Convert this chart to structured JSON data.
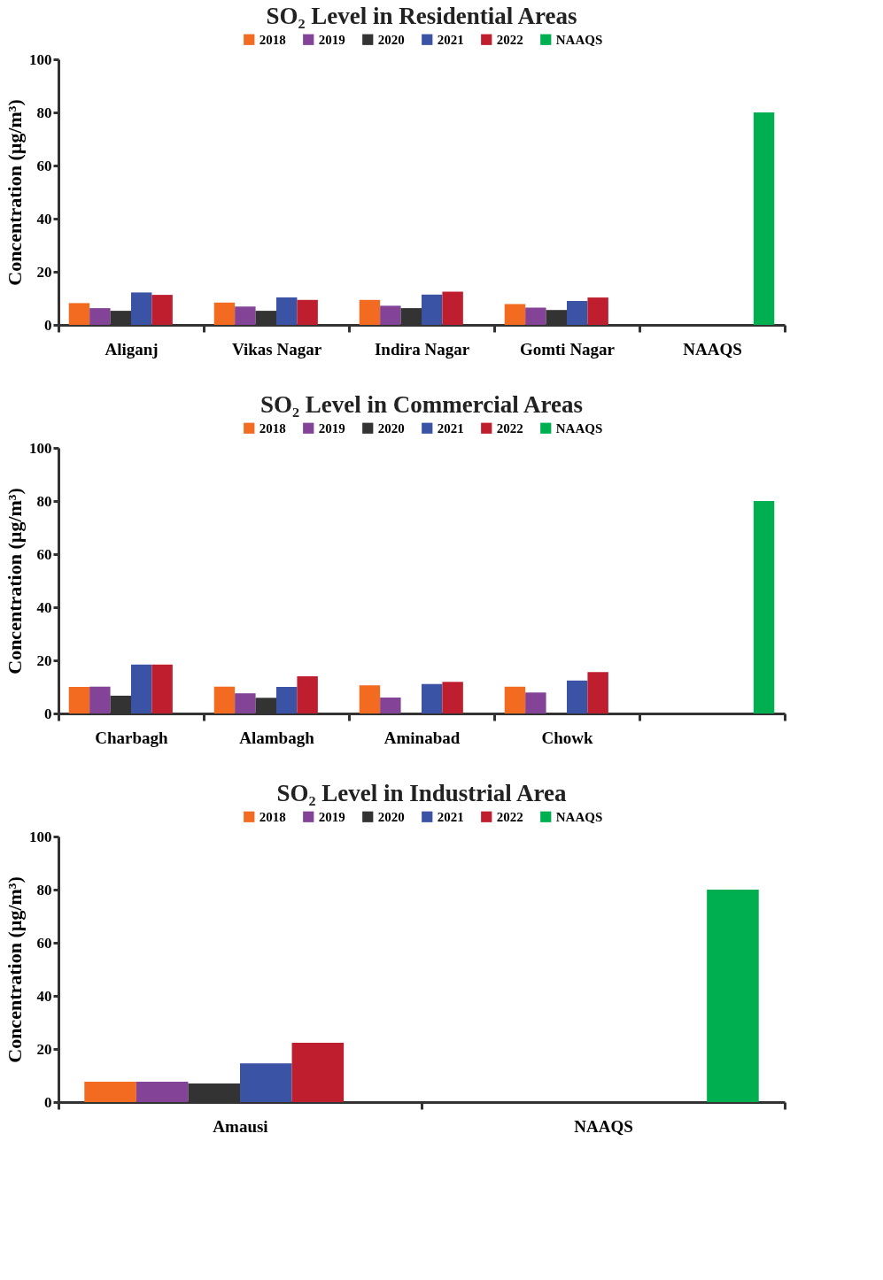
{
  "chart_data": [
    {
      "type": "bar",
      "title": "SO₂ Level in Residential Areas",
      "ylabel": "Concentration (µg/m³)",
      "categories": [
        "Aliganj",
        "Vikas Nagar",
        "Indira Nagar",
        "Gomti Nagar",
        "NAAQS"
      ],
      "ylim": [
        0,
        100
      ],
      "yticks": [
        0,
        20,
        40,
        60,
        80,
        100
      ],
      "grid": false,
      "legend": "top",
      "series": [
        {
          "name": "2018",
          "color": "#f26b21",
          "values": [
            8.2,
            8.4,
            9.4,
            7.8,
            null
          ]
        },
        {
          "name": "2019",
          "color": "#834397",
          "values": [
            6.3,
            6.9,
            7.2,
            6.5,
            null
          ]
        },
        {
          "name": "2020",
          "color": "#333333",
          "values": [
            5.3,
            5.3,
            6.3,
            5.6,
            null
          ]
        },
        {
          "name": "2021",
          "color": "#3a53a4",
          "values": [
            12.2,
            10.3,
            11.4,
            9.0,
            null
          ]
        },
        {
          "name": "2022",
          "color": "#be1e2d",
          "values": [
            11.3,
            9.4,
            12.5,
            10.3,
            null
          ]
        },
        {
          "name": "NAAQS",
          "color": "#00b050",
          "values": [
            null,
            null,
            null,
            null,
            80
          ]
        }
      ]
    },
    {
      "type": "bar",
      "title": "SO₂ Level in Commercial Areas",
      "ylabel": "Concentration (µg/m³)",
      "categories": [
        "Charbagh",
        "Alambagh",
        "Aminabad",
        "Chowk",
        null
      ],
      "ylim": [
        0,
        100
      ],
      "yticks": [
        0,
        20,
        40,
        60,
        80,
        100
      ],
      "grid": false,
      "legend": "top",
      "series": [
        {
          "name": "2018",
          "color": "#f26b21",
          "values": [
            10.0,
            10.1,
            10.6,
            10.1,
            null
          ]
        },
        {
          "name": "2019",
          "color": "#834397",
          "values": [
            10.1,
            7.6,
            6.0,
            7.9,
            null
          ]
        },
        {
          "name": "2020",
          "color": "#333333",
          "values": [
            6.7,
            5.9,
            null,
            null,
            null
          ]
        },
        {
          "name": "2021",
          "color": "#3a53a4",
          "values": [
            18.4,
            10.0,
            11.1,
            12.4,
            null
          ]
        },
        {
          "name": "2022",
          "color": "#be1e2d",
          "values": [
            18.4,
            14.0,
            11.9,
            15.6,
            null
          ]
        },
        {
          "name": "NAAQS",
          "color": "#00b050",
          "values": [
            null,
            null,
            null,
            null,
            80
          ]
        }
      ]
    },
    {
      "type": "bar",
      "title": "SO₂ Level in Industrial Area",
      "ylabel": "Concentration (µg/m³)",
      "categories": [
        "Amausi",
        "NAAQS"
      ],
      "ylim": [
        0,
        100
      ],
      "yticks": [
        0,
        20,
        40,
        60,
        80,
        100
      ],
      "grid": false,
      "legend": "top",
      "series": [
        {
          "name": "2018",
          "color": "#f26b21",
          "values": [
            7.7,
            null
          ]
        },
        {
          "name": "2019",
          "color": "#834397",
          "values": [
            7.7,
            null
          ]
        },
        {
          "name": "2020",
          "color": "#333333",
          "values": [
            7.0,
            null
          ]
        },
        {
          "name": "2021",
          "color": "#3a53a4",
          "values": [
            14.6,
            null
          ]
        },
        {
          "name": "2022",
          "color": "#be1e2d",
          "values": [
            22.3,
            null
          ]
        },
        {
          "name": "NAAQS",
          "color": "#00b050",
          "values": [
            null,
            80
          ]
        }
      ]
    }
  ]
}
